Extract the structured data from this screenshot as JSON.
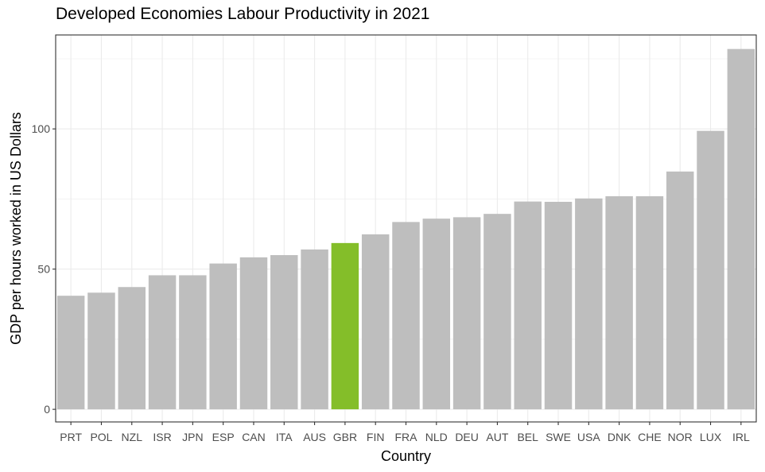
{
  "chart_data": {
    "type": "bar",
    "title": "Developed Economies Labour Productivity in 2021",
    "xlabel": "Country",
    "ylabel": "GDP per hours worked in US Dollars",
    "categories": [
      "PRT",
      "POL",
      "NZL",
      "ISR",
      "JPN",
      "ESP",
      "CAN",
      "ITA",
      "AUS",
      "GBR",
      "FIN",
      "FRA",
      "NLD",
      "DEU",
      "AUT",
      "BEL",
      "SWE",
      "USA",
      "DNK",
      "CHE",
      "NOR",
      "LUX",
      "IRL"
    ],
    "values": [
      40.5,
      41.6,
      43.6,
      47.8,
      47.8,
      52.0,
      54.2,
      55.0,
      57.0,
      59.3,
      62.4,
      66.8,
      68.0,
      68.5,
      69.7,
      74.1,
      74.0,
      75.2,
      76.0,
      76.0,
      84.8,
      99.3,
      128.5
    ],
    "highlight_category": "GBR",
    "colors": {
      "default_bar": "#bebebe",
      "highlight_bar": "#84be29",
      "grid": "#ebebeb",
      "panel_border": "#333333"
    },
    "yticks": [
      0,
      50,
      100
    ],
    "ylim": [
      -4.5,
      133.5
    ],
    "grid": true,
    "legend": "none"
  }
}
